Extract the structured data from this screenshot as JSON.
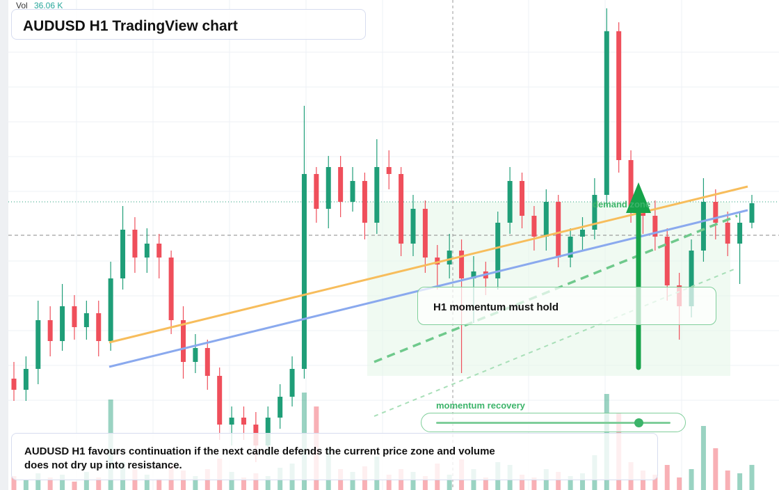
{
  "chart_data": {
    "type": "candlestick",
    "title": "AUDUSD H1 TradingView chart",
    "ylim": [
      0,
      88
    ],
    "up_color": "#1f9e78",
    "down_color": "#ef4f5b",
    "open": [
      20,
      18,
      21.75,
      30.5,
      26.75,
      33,
      29.25,
      31.75,
      26.75,
      38,
      46.75,
      41.75,
      44.25,
      41.75,
      30.5,
      23,
      25.5,
      20.5,
      11.75,
      13,
      11.75,
      8,
      13,
      16.75,
      21.75,
      56.75,
      50.5,
      58,
      51.75,
      55.5,
      48,
      58,
      56.75,
      44.25,
      50.5,
      41.75,
      40.5,
      43,
      38,
      39.25,
      38,
      48,
      55.5,
      49.25,
      45.5,
      51.75,
      41.75,
      45.5,
      46.75,
      53,
      82.4,
      59.25,
      50.5,
      49.25,
      45.5,
      36.75,
      33,
      43,
      51.75,
      48,
      44.25,
      48
    ],
    "high": [
      23,
      24,
      34,
      33,
      37,
      35,
      34,
      34,
      41,
      51,
      49,
      47,
      46,
      43,
      33,
      28,
      27,
      22,
      15,
      15,
      14,
      15,
      19,
      24,
      69,
      58,
      60,
      60,
      58,
      57,
      63,
      61,
      58,
      53,
      52,
      44,
      46,
      45,
      42,
      41,
      50,
      58,
      57,
      51,
      54,
      53,
      47,
      49,
      56,
      86.5,
      84,
      61,
      52,
      52,
      47,
      39,
      45,
      56,
      54,
      50,
      50,
      53
    ],
    "low": [
      16,
      16,
      19,
      24,
      25,
      27,
      27,
      24,
      25,
      36,
      39,
      39,
      38,
      28,
      20,
      21,
      18,
      9,
      8,
      9,
      5,
      6,
      11,
      15,
      20,
      48,
      47,
      49,
      50,
      45,
      46,
      54,
      42,
      42,
      39,
      36,
      38,
      21,
      30,
      35,
      36,
      46,
      47,
      43,
      43,
      40,
      40,
      43,
      45,
      51,
      57,
      48,
      46,
      43,
      34,
      27,
      31,
      41,
      45,
      42,
      37,
      47
    ],
    "close": [
      18,
      21.75,
      30.5,
      26.75,
      33,
      29.25,
      31.75,
      26.75,
      38,
      46.75,
      41.75,
      44.25,
      41.75,
      30.5,
      23,
      25.5,
      20.5,
      11.75,
      13,
      11.75,
      8,
      13,
      16.75,
      21.75,
      56.75,
      50.5,
      58,
      51.75,
      55.5,
      48,
      58,
      56.75,
      44.25,
      50.5,
      41.75,
      40.5,
      43,
      38,
      39.25,
      38,
      48,
      55.5,
      49.25,
      45.5,
      51.75,
      41.75,
      45.5,
      46.75,
      53,
      82.4,
      59.25,
      50.5,
      49.25,
      45.5,
      36.75,
      33,
      43,
      51.75,
      48,
      44.25,
      48,
      51.5
    ],
    "volume": {
      "name": "Vol",
      "ylim": [
        0,
        150
      ],
      "last_label": "36.06 K",
      "values": [
        20,
        14,
        24,
        18,
        22,
        12,
        26,
        18,
        130,
        40,
        30,
        22,
        16,
        35,
        28,
        20,
        30,
        45,
        26,
        18,
        24,
        20,
        32,
        38,
        140,
        120,
        60,
        30,
        26,
        34,
        48,
        22,
        30,
        26,
        20,
        38,
        22,
        44,
        30,
        18,
        40,
        36,
        22,
        18,
        30,
        26,
        20,
        24,
        50,
        138,
        110,
        40,
        28,
        22,
        36,
        18,
        30,
        92,
        60,
        28,
        24,
        36.06
      ]
    },
    "zone_label": "demand zone",
    "callout": "H1 momentum must hold",
    "slider_label": "momentum recovery",
    "note": "AUDUSD H1 favours continuation if the next candle defends the current price zone and volume does not dry up into resistance."
  }
}
